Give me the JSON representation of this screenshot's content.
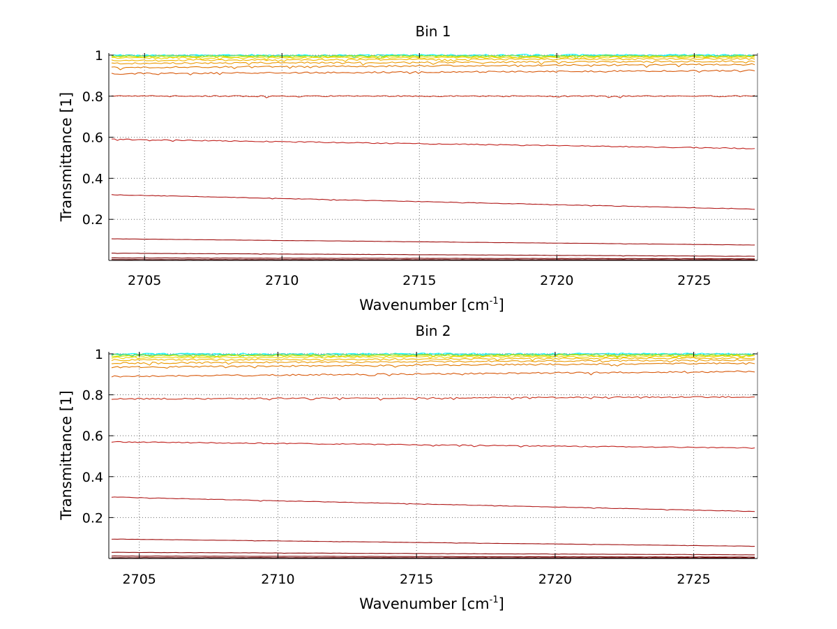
{
  "figure": {
    "background": "#ffffff"
  },
  "chart_data": [
    {
      "type": "line",
      "title": "Bin 1",
      "xlabel": "Wavenumber [cm",
      "xlabel_sup": "-1",
      "xlabel_suffix": "]",
      "ylabel": "Transmittance [1]",
      "xlim": [
        2703.7,
        2727.3
      ],
      "ylim": [
        0,
        1.01
      ],
      "xticks": [
        2705,
        2710,
        2715,
        2720,
        2725
      ],
      "xtick_labels": [
        "2705",
        "2710",
        "2715",
        "2720",
        "2725"
      ],
      "yticks": [
        0.2,
        0.4,
        0.6,
        0.8,
        1
      ],
      "ytick_labels": [
        "0.2",
        "0.4",
        "0.6",
        "0.8",
        "1"
      ],
      "grid": true,
      "legend": false,
      "x": [
        2703.8,
        2727.2
      ],
      "series": [
        {
          "values": [
            1.0,
            1.0
          ],
          "color": "#00ffff"
        },
        {
          "values": [
            0.998,
            0.998
          ],
          "color": "#3cd6c8"
        },
        {
          "values": [
            0.996,
            0.997
          ],
          "color": "#7fdc4a"
        },
        {
          "values": [
            0.992,
            0.994
          ],
          "color": "#c8e600"
        },
        {
          "values": [
            0.986,
            0.99
          ],
          "color": "#f2d200"
        },
        {
          "values": [
            0.975,
            0.982
          ],
          "color": "#f0b400"
        },
        {
          "values": [
            0.96,
            0.97
          ],
          "color": "#ec9a00"
        },
        {
          "values": [
            0.94,
            0.955
          ],
          "color": "#e07800"
        },
        {
          "values": [
            0.91,
            0.925
          ],
          "color": "#d85a0c"
        },
        {
          "values": [
            0.8,
            0.8
          ],
          "color": "#c8321c"
        },
        {
          "values": [
            0.59,
            0.545
          ],
          "color": "#c0201c"
        },
        {
          "values": [
            0.32,
            0.25
          ],
          "color": "#b01818"
        },
        {
          "values": [
            0.105,
            0.075
          ],
          "color": "#a01010"
        },
        {
          "values": [
            0.035,
            0.02
          ],
          "color": "#8a0808"
        },
        {
          "values": [
            0.012,
            0.008
          ],
          "color": "#780000"
        },
        {
          "values": [
            0.004,
            0.003
          ],
          "color": "#600000"
        }
      ]
    },
    {
      "type": "line",
      "title": "Bin 2",
      "xlabel": "Wavenumber [cm",
      "xlabel_sup": "-1",
      "xlabel_suffix": "]",
      "ylabel": "Transmittance [1]",
      "xlim": [
        2703.9,
        2727.3
      ],
      "ylim": [
        0,
        1.01
      ],
      "xticks": [
        2705,
        2710,
        2715,
        2720,
        2725
      ],
      "xtick_labels": [
        "2705",
        "2710",
        "2715",
        "2720",
        "2725"
      ],
      "yticks": [
        0.2,
        0.4,
        0.6,
        0.8,
        1
      ],
      "ytick_labels": [
        "0.2",
        "0.4",
        "0.6",
        "0.8",
        "1"
      ],
      "grid": true,
      "legend": false,
      "x": [
        2704.0,
        2727.2
      ],
      "series": [
        {
          "values": [
            1.0,
            1.0
          ],
          "color": "#00ffff"
        },
        {
          "values": [
            0.998,
            0.998
          ],
          "color": "#3cd6c8"
        },
        {
          "values": [
            0.995,
            0.996
          ],
          "color": "#7fdc4a"
        },
        {
          "values": [
            0.99,
            0.993
          ],
          "color": "#c8e600"
        },
        {
          "values": [
            0.982,
            0.988
          ],
          "color": "#f2d200"
        },
        {
          "values": [
            0.97,
            0.98
          ],
          "color": "#f0b400"
        },
        {
          "values": [
            0.955,
            0.97
          ],
          "color": "#ec9a00"
        },
        {
          "values": [
            0.935,
            0.955
          ],
          "color": "#e07800"
        },
        {
          "values": [
            0.89,
            0.915
          ],
          "color": "#d85a0c"
        },
        {
          "values": [
            0.78,
            0.79
          ],
          "color": "#c8321c"
        },
        {
          "values": [
            0.57,
            0.54
          ],
          "color": "#c0201c"
        },
        {
          "values": [
            0.3,
            0.23
          ],
          "color": "#b01818"
        },
        {
          "values": [
            0.095,
            0.06
          ],
          "color": "#a01010"
        },
        {
          "values": [
            0.03,
            0.018
          ],
          "color": "#8a0808"
        },
        {
          "values": [
            0.012,
            0.007
          ],
          "color": "#780000"
        },
        {
          "values": [
            0.004,
            0.003
          ],
          "color": "#600000"
        }
      ]
    }
  ]
}
